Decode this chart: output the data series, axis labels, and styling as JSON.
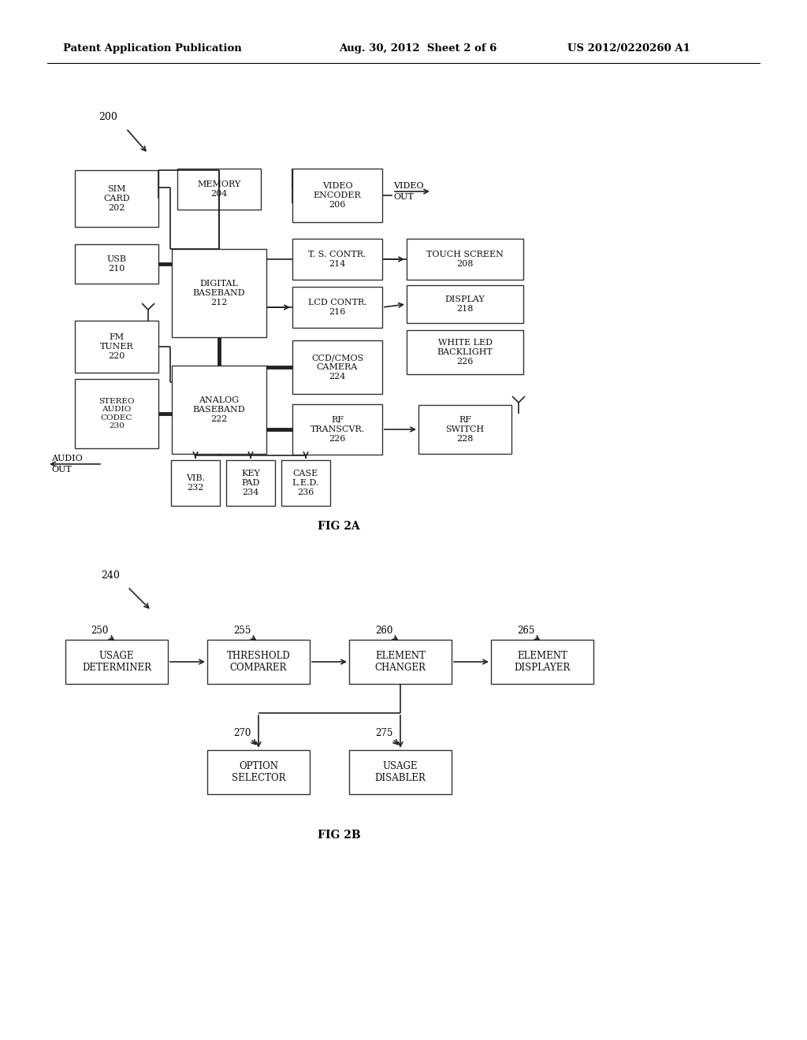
{
  "bg_color": "#ffffff",
  "header_left": "Patent Application Publication",
  "header_mid": "Aug. 30, 2012  Sheet 2 of 6",
  "header_right": "US 2012/0220260 A1",
  "fig2a_label": "FIG 2A",
  "fig2b_label": "FIG 2B"
}
